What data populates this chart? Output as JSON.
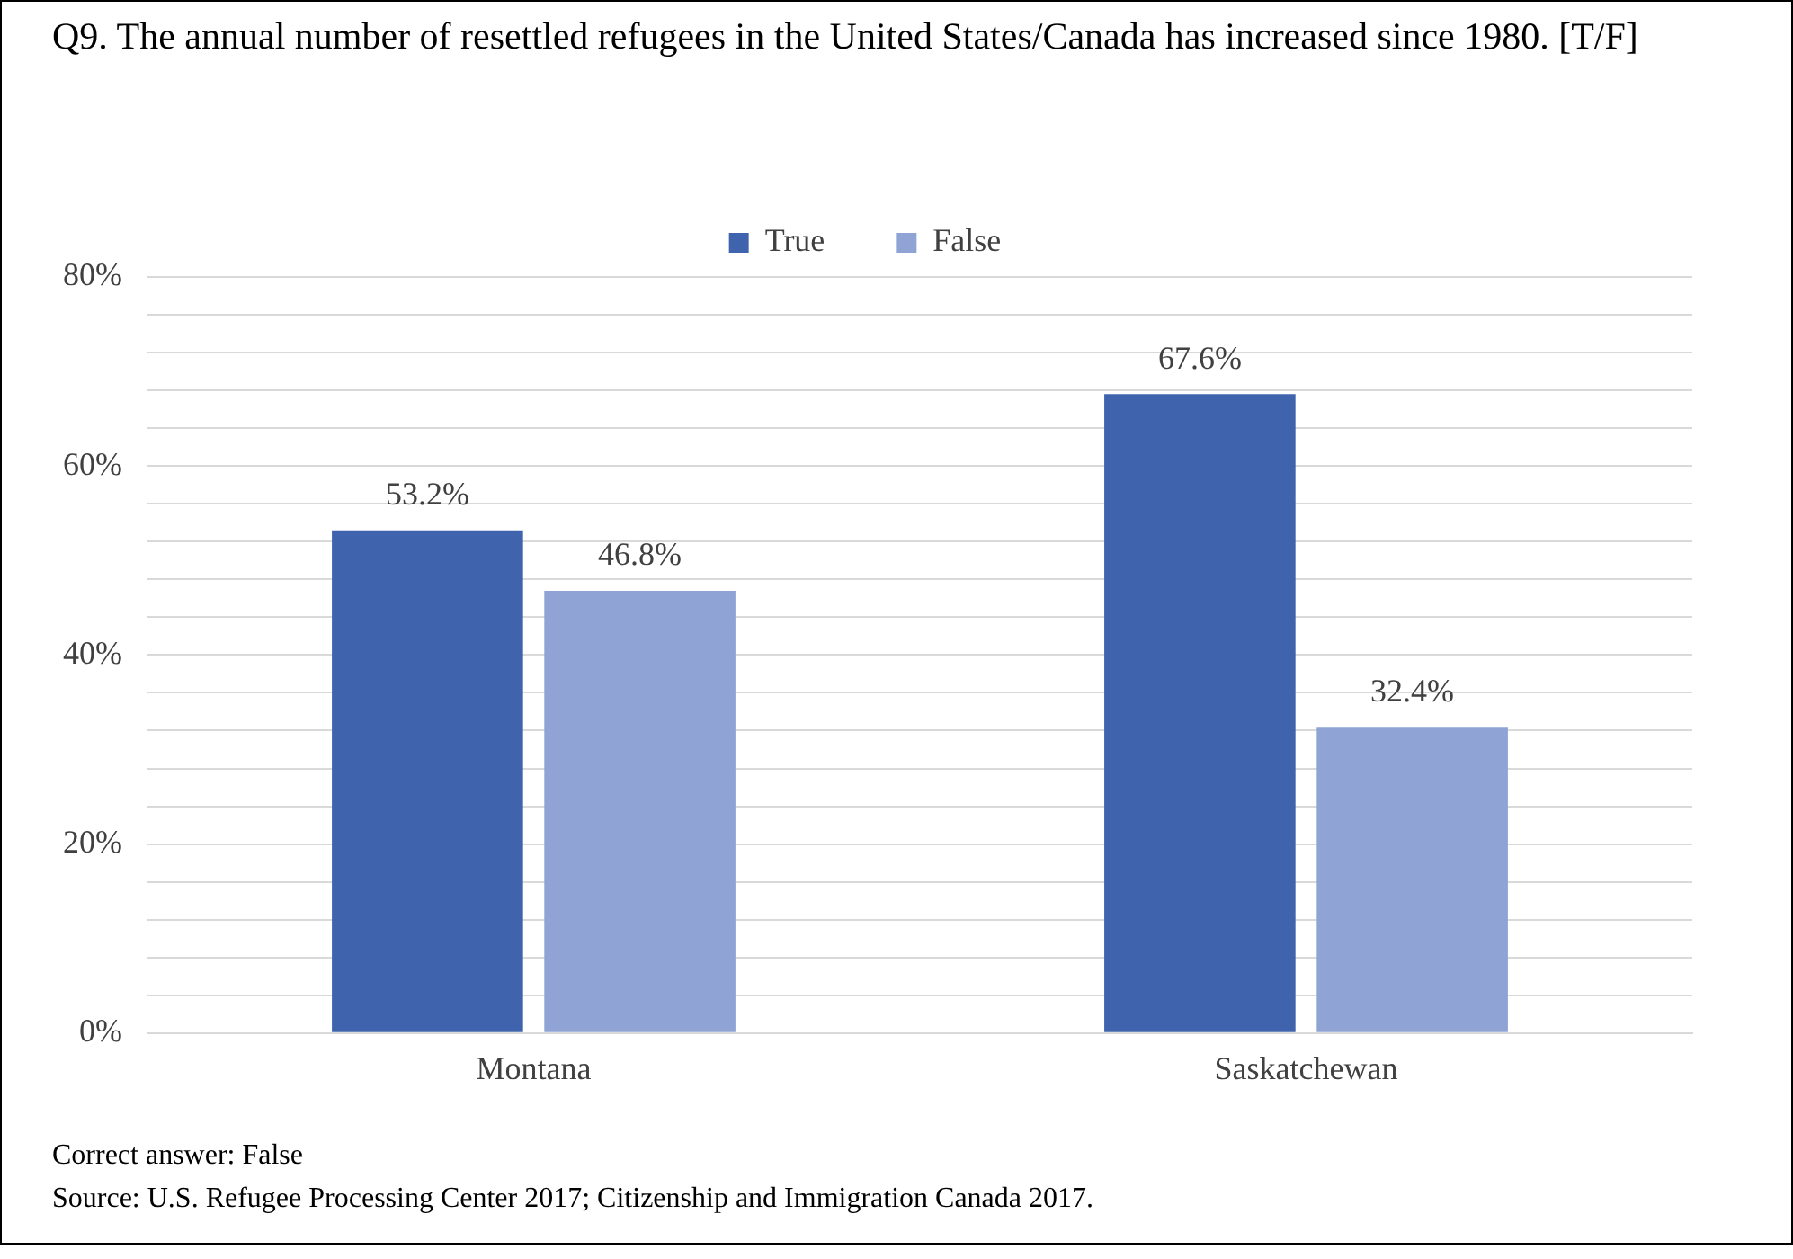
{
  "chart_data": {
    "type": "bar",
    "title": "Q9. The annual number of resettled refugees in the United States/Canada has increased since 1980.  [T/F]",
    "categories": [
      "Montana",
      "Saskatchewan"
    ],
    "series": [
      {
        "name": "True",
        "color": "#3f64ad",
        "values": [
          53.2,
          67.6
        ],
        "value_labels": [
          "53.2%",
          "67.6%"
        ]
      },
      {
        "name": "False",
        "color": "#8fa3d4",
        "values": [
          46.8,
          32.4
        ],
        "value_labels": [
          "46.8%",
          "32.4%"
        ]
      }
    ],
    "ylim": [
      0,
      80
    ],
    "yticks": [
      {
        "value": 0,
        "label": "0%"
      },
      {
        "value": 4,
        "label": null
      },
      {
        "value": 8,
        "label": null
      },
      {
        "value": 12,
        "label": null
      },
      {
        "value": 16,
        "label": null
      },
      {
        "value": 20,
        "label": "20%"
      },
      {
        "value": 24,
        "label": null
      },
      {
        "value": 28,
        "label": null
      },
      {
        "value": 32,
        "label": null
      },
      {
        "value": 36,
        "label": null
      },
      {
        "value": 40,
        "label": "40%"
      },
      {
        "value": 44,
        "label": null
      },
      {
        "value": 48,
        "label": null
      },
      {
        "value": 52,
        "label": null
      },
      {
        "value": 56,
        "label": null
      },
      {
        "value": 60,
        "label": "60%"
      },
      {
        "value": 64,
        "label": null
      },
      {
        "value": 68,
        "label": null
      },
      {
        "value": 72,
        "label": null
      },
      {
        "value": 76,
        "label": null
      },
      {
        "value": 80,
        "label": "80%"
      }
    ],
    "grid": "y",
    "legend": "top",
    "annotations": [
      "Correct answer: False",
      "Source: U.S. Refugee Processing Center 2017; Citizenship and Immigration Canada 2017."
    ]
  }
}
